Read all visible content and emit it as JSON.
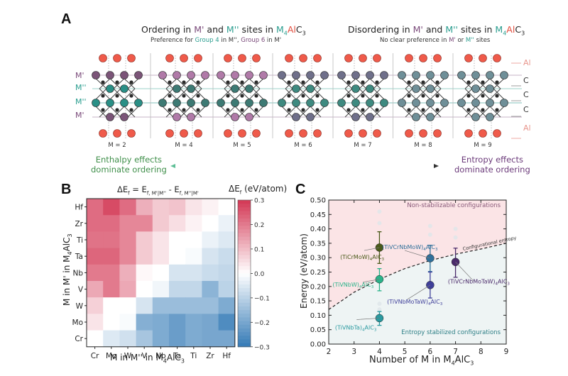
{
  "panel_a": {
    "letter": "A",
    "left_title": {
      "pre": "Ordering in ",
      "m1": "M'",
      "mid": " and ",
      "m2": "M''",
      "post": " sites in ",
      "formula_m": "M",
      "formula_sub": "4",
      "formula_al": "Al",
      "formula_c": "C",
      "formula_c_sub": "3"
    },
    "left_subtitle": {
      "pre": "Preference for ",
      "g4": "Group 4",
      "mid": " in M'', ",
      "g6": "Group 6",
      "post": " in M'"
    },
    "right_title": {
      "pre": "Disordering in ",
      "m1": "M'",
      "mid": " and ",
      "m2": "M''",
      "post": " sites in ",
      "formula_m": "M",
      "formula_sub": "4",
      "formula_al": "Al",
      "formula_c": "C",
      "formula_c_sub": "3"
    },
    "right_subtitle": {
      "pre": "No clear preference in ",
      "m1": "M'",
      "mid": " or ",
      "m2": "M''",
      "post": " sites"
    },
    "left_site_labels": [
      "M'",
      "M''",
      "M''",
      "M'"
    ],
    "right_site_labels": [
      "Al",
      "C",
      "C",
      "C",
      "Al"
    ],
    "structures": [
      {
        "label": "M = 2",
        "style": "ordered"
      },
      {
        "label": "M = 4",
        "style": "mixed-pink"
      },
      {
        "label": "M = 5",
        "style": "mixed-pink"
      },
      {
        "label": "M = 6",
        "style": "mixed-grey"
      },
      {
        "label": "M = 7",
        "style": "mixed-grey"
      },
      {
        "label": "M = 8",
        "style": "disordered"
      },
      {
        "label": "M = 9",
        "style": "disordered"
      }
    ],
    "left_caption": [
      "Enthalpy effects",
      "dominate ordering"
    ],
    "right_caption": [
      "Entropy effects",
      "dominate ordering"
    ],
    "colors": {
      "al": "#ef5a4a",
      "c": "#2b2b2b",
      "m_prime": "#7b5478",
      "m_double": "#2a8f86",
      "m_disordered": "#6f8f98"
    }
  },
  "chart_data": [
    {
      "type": "heatmap",
      "panel": "B",
      "title": "ΔE_f = E_f, M'|M'' - E_f, M''|M'",
      "title_parts": {
        "lhs": "ΔE",
        "lhs_sub": "f",
        "eq": " = E",
        "sub1": "f, M'|M''",
        "minus": " - E",
        "sub2": "f, M''|M'"
      },
      "xlabel": "M in M'' in M4AlC3",
      "xlabel_parts": {
        "pre": "M in M'' in M",
        "sub": "4",
        "post": "AlC",
        "sub2": "3"
      },
      "ylabel": "M in M' in M4AlC3",
      "ylabel_parts": {
        "pre": "M in M' in M",
        "sub": "4",
        "post": "AlC",
        "sub2": "3"
      },
      "x_categories": [
        "Cr",
        "Mo",
        "W",
        "V",
        "Nb",
        "Ta",
        "Ti",
        "Zr",
        "Hf"
      ],
      "y_categories": [
        "Hf",
        "Zr",
        "Ti",
        "Ta",
        "Nb",
        "V",
        "W",
        "Mo",
        "Cr"
      ],
      "values": [
        [
          0.22,
          0.27,
          0.22,
          0.12,
          0.08,
          0.09,
          0.04,
          0.02,
          0.0
        ],
        [
          0.22,
          0.22,
          0.18,
          0.18,
          0.08,
          0.05,
          0.02,
          0.0,
          -0.03
        ],
        [
          0.21,
          0.21,
          0.18,
          0.08,
          0.04,
          0.0,
          0.0,
          -0.03,
          -0.05
        ],
        [
          0.23,
          0.23,
          0.18,
          0.08,
          0.04,
          0.0,
          -0.01,
          -0.06,
          -0.08
        ],
        [
          0.2,
          0.2,
          0.12,
          0.01,
          0.0,
          -0.06,
          -0.06,
          -0.08,
          -0.09
        ],
        [
          0.13,
          0.2,
          0.13,
          0.0,
          -0.02,
          -0.09,
          -0.09,
          -0.17,
          -0.1
        ],
        [
          0.07,
          0.0,
          0.0,
          -0.06,
          -0.15,
          -0.15,
          -0.15,
          -0.15,
          -0.19
        ],
        [
          0.04,
          0.0,
          -0.01,
          -0.18,
          -0.19,
          -0.22,
          -0.19,
          -0.2,
          -0.26
        ],
        [
          0.0,
          -0.05,
          -0.07,
          -0.13,
          -0.19,
          -0.22,
          -0.19,
          -0.2,
          -0.2
        ]
      ],
      "colorbar": {
        "label": "ΔE_f (eV/atom)",
        "label_parts": {
          "pre": "ΔE",
          "sub": "f",
          "post": " (eV/atom)"
        },
        "min": -0.3,
        "max": 0.3,
        "ticks": [
          "0.3",
          "0.2",
          "0.1",
          "0.0",
          "−0.1",
          "−0.2",
          "−0.3"
        ],
        "colormap": "RdBu_r"
      }
    },
    {
      "type": "scatter",
      "panel": "C",
      "xlabel": "Number of M in M4AlC3",
      "xlabel_parts": {
        "pre": "Number of M in M",
        "sub": "4",
        "post": "AlC",
        "sub2": "3"
      },
      "ylabel": "Energy (eV/atom)",
      "xlim": [
        2,
        9
      ],
      "ylim": [
        0.0,
        0.5
      ],
      "x_ticks": [
        "2",
        "3",
        "4",
        "5",
        "6",
        "7",
        "8",
        "9"
      ],
      "y_ticks": [
        "0.00",
        "0.05",
        "0.10",
        "0.15",
        "0.20",
        "0.25",
        "0.30",
        "0.35",
        "0.40",
        "0.45",
        "0.50"
      ],
      "region_labels": {
        "upper": "Non-stabilizable configurations",
        "lower": "Entropy stabilized configurations"
      },
      "curve_label": "Configurational entropy",
      "entropy_curve": {
        "x": [
          2,
          3,
          4,
          5,
          6,
          7,
          8,
          9
        ],
        "y": [
          0.12,
          0.18,
          0.225,
          0.262,
          0.29,
          0.312,
          0.33,
          0.35
        ]
      },
      "series": [
        {
          "name": "(TiCrMoW)4AlC3",
          "label_parts": {
            "pre": "(TiCrMoW)",
            "sub": "4",
            "post": "AlC",
            "sub2": "3"
          },
          "x": 4,
          "y": 0.335,
          "err_low": 0.28,
          "err_high": 0.39,
          "color": "#4a5a1a"
        },
        {
          "name": "(TiVNbW)4AlC3",
          "label_parts": {
            "pre": "(TiVNbW)",
            "sub": "4",
            "post": "AlC",
            "sub2": "3"
          },
          "x": 4,
          "y": 0.225,
          "err_low": 0.185,
          "err_high": 0.262,
          "color": "#2ab38a"
        },
        {
          "name": "(TiVNbTa)4AlC3",
          "label_parts": {
            "pre": "(TiVNbTa)",
            "sub": "4",
            "post": "AlC",
            "sub2": "3"
          },
          "x": 4,
          "y": 0.09,
          "err_low": 0.065,
          "err_high": 0.113,
          "color": "#2a9aa0"
        },
        {
          "name": "(TiVCrNbMoW)4AlC3",
          "label_parts": {
            "pre": "(TiVCrNbMoW)",
            "sub": "4",
            "post": "AlC",
            "sub2": "3"
          },
          "x": 6,
          "y": 0.298,
          "err_low": 0.252,
          "err_high": 0.343,
          "color": "#2f6f9a"
        },
        {
          "name": "(TiVNbMoTaW)4AlC3",
          "label_parts": {
            "pre": "(TiVNbMoTaW)",
            "sub": "4",
            "post": "AlC",
            "sub2": "3"
          },
          "x": 6,
          "y": 0.205,
          "err_low": 0.16,
          "err_high": 0.25,
          "color": "#3f3f9a"
        },
        {
          "name": "(TiVCrNbMoTaW)4AlC3",
          "label_parts": {
            "pre": "(TiVCrNbMoTaW)",
            "sub": "4",
            "post": "AlC",
            "sub2": "3"
          },
          "x": 7,
          "y": 0.285,
          "err_low": 0.232,
          "err_high": 0.333,
          "color": "#4a2a6a"
        }
      ],
      "faint_points": [
        {
          "x": 4,
          "y": 0.46
        },
        {
          "x": 4,
          "y": 0.42
        },
        {
          "x": 4,
          "y": 0.14
        },
        {
          "x": 4,
          "y": 0.12
        },
        {
          "x": 6,
          "y": 0.41
        },
        {
          "x": 6,
          "y": 0.38
        },
        {
          "x": 7,
          "y": 0.4
        },
        {
          "x": 7,
          "y": 0.37
        }
      ]
    }
  ],
  "panel_b": {
    "letter": "B"
  },
  "panel_c": {
    "letter": "C"
  }
}
